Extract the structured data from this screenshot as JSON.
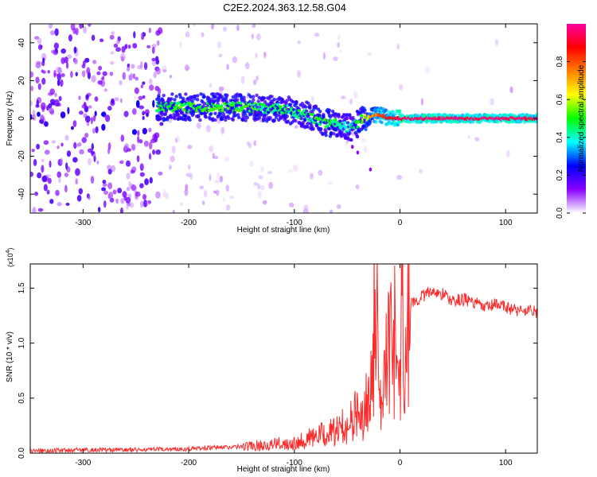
{
  "title": "C2E2.2024.363.12.58.G04",
  "chart_data": [
    {
      "type": "heatmap",
      "xlabel": "Height of straight line (km)",
      "ylabel": "Frequency (Hz)",
      "xlim": [
        -350,
        130
      ],
      "ylim": [
        -50,
        50
      ],
      "xticks": [
        -300,
        -200,
        -100,
        0,
        100
      ],
      "yticks": [
        -40,
        -20,
        0,
        20,
        40
      ],
      "colorbar": {
        "label": "Normalized spectral amplitude",
        "range": [
          0,
          1
        ],
        "ticks": [
          "0.0",
          "0.2",
          "0.4",
          "0.6",
          "0.8"
        ],
        "colormap": [
          "#ffffff",
          "#8a00ff",
          "#0000ff",
          "#00ffff",
          "#00ff00",
          "#ffff00",
          "#ff8000",
          "#ff0000",
          "#ff00a0"
        ]
      },
      "ridge": {
        "description_points_x": [
          -230,
          -200,
          -150,
          -110,
          -90,
          -70,
          -55,
          -45,
          -35,
          -20,
          -10,
          0,
          20,
          60,
          100,
          130
        ],
        "description_points_y": [
          6,
          6,
          6,
          5,
          2,
          -2,
          -4,
          -5,
          0,
          2,
          0,
          0,
          0,
          0,
          0,
          0
        ],
        "amplitude": [
          0.45,
          0.5,
          0.5,
          0.45,
          0.45,
          0.5,
          0.4,
          0.4,
          0.55,
          0.8,
          0.85,
          0.95,
          0.95,
          0.95,
          0.95,
          0.95
        ]
      }
    },
    {
      "type": "line",
      "xlabel": "Height of straight line (km)",
      "ylabel": "SNR (10 * v/v)",
      "y_multiplier": "(x10",
      "y_multiplier_exp": "4",
      "xlim": [
        -350,
        130
      ],
      "ylim": [
        0,
        1.72
      ],
      "xticks": [
        -300,
        -200,
        -100,
        0,
        100
      ],
      "yticks": [
        "0.0",
        "0.5",
        "1.0",
        "1.5"
      ],
      "color": "#ff2a2a",
      "series": [
        {
          "x": [
            -350,
            -300,
            -250,
            -200,
            -150,
            -120,
            -100,
            -80,
            -60,
            -45,
            -35,
            -28,
            -24,
            -22,
            -20,
            -15,
            -10,
            0,
            10,
            20,
            30,
            40,
            50,
            60,
            70,
            80,
            90,
            100,
            110,
            120,
            130
          ],
          "y": [
            0.02,
            0.03,
            0.03,
            0.04,
            0.06,
            0.08,
            0.1,
            0.15,
            0.2,
            0.3,
            0.45,
            0.8,
            1.3,
            1.6,
            0.6,
            0.8,
            1.1,
            1.25,
            1.35,
            1.42,
            1.47,
            1.45,
            1.38,
            1.4,
            1.37,
            1.32,
            1.35,
            1.33,
            1.3,
            1.3,
            1.28
          ]
        }
      ]
    }
  ]
}
